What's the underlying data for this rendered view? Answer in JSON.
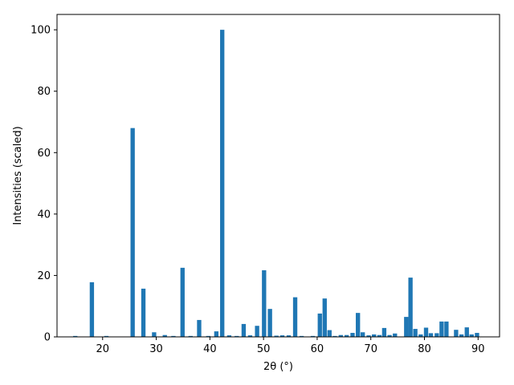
{
  "chart_data": {
    "type": "bar",
    "xlabel": "2θ (°)",
    "ylabel": "Intensities (scaled)",
    "xlim": [
      11.5,
      94.0
    ],
    "ylim": [
      0,
      105
    ],
    "x_ticks": [
      20,
      30,
      40,
      50,
      60,
      70,
      80,
      90
    ],
    "y_ticks": [
      0,
      20,
      40,
      60,
      80,
      100
    ],
    "bar_width": 0.8,
    "bar_color": "#1f77b4",
    "grid": false,
    "legend": "none",
    "x": [
      14.9,
      18.0,
      20.7,
      25.6,
      27.6,
      29.6,
      31.6,
      33.2,
      34.9,
      36.4,
      38.0,
      39.7,
      41.2,
      42.3,
      43.6,
      45.0,
      46.3,
      47.5,
      48.8,
      50.1,
      51.2,
      52.4,
      53.5,
      54.7,
      55.9,
      57.1,
      59.2,
      60.5,
      61.4,
      62.3,
      63.3,
      64.4,
      65.5,
      66.6,
      67.6,
      68.5,
      69.6,
      70.6,
      71.6,
      72.5,
      73.5,
      74.5,
      76.6,
      77.4,
      78.3,
      79.3,
      80.3,
      81.2,
      82.3,
      83.2,
      84.1,
      85.9,
      86.9,
      87.9,
      88.8,
      89.8
    ],
    "values": [
      0.3,
      17.8,
      0.3,
      68.0,
      15.7,
      1.5,
      0.6,
      0.3,
      22.5,
      0.3,
      5.5,
      0.3,
      1.8,
      100.0,
      0.5,
      0.3,
      4.2,
      0.5,
      3.6,
      21.7,
      9.1,
      0.4,
      0.5,
      0.5,
      12.9,
      0.3,
      0.3,
      7.6,
      12.5,
      2.2,
      0.3,
      0.6,
      0.6,
      1.3,
      7.8,
      1.5,
      0.5,
      0.8,
      0.6,
      2.9,
      0.6,
      1.1,
      6.5,
      19.3,
      2.6,
      0.8,
      3.0,
      1.2,
      1.2,
      5.0,
      5.0,
      2.3,
      0.8,
      3.1,
      0.8,
      1.3
    ]
  }
}
